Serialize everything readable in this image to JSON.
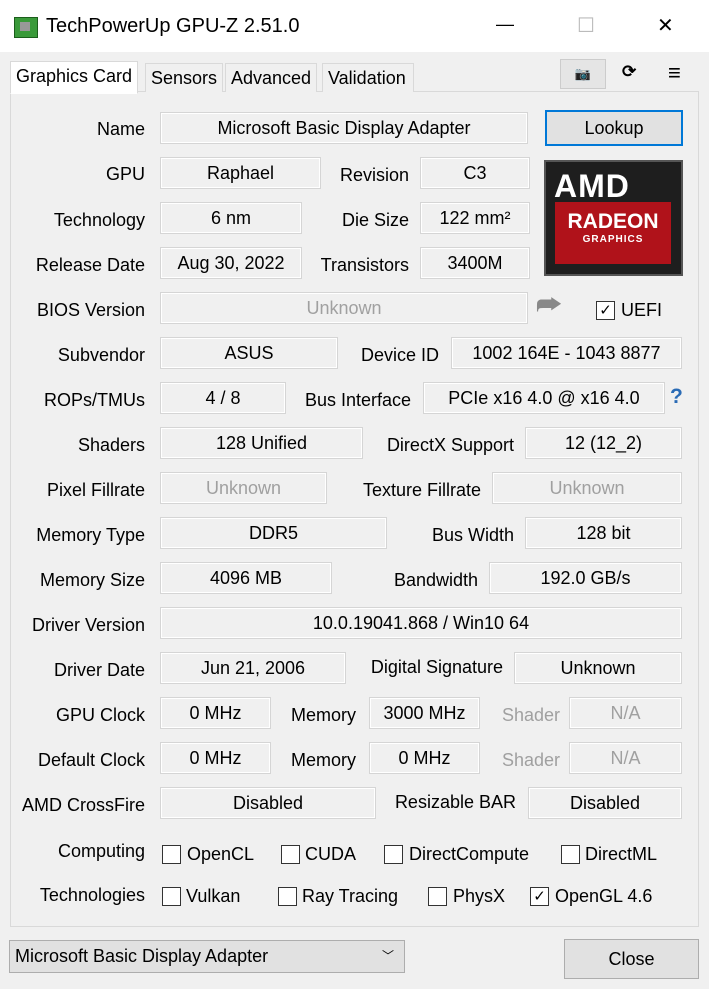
{
  "window": {
    "title": "TechPowerUp GPU-Z 2.51.0",
    "minimize": "—",
    "maximize": "☐",
    "close": "✕"
  },
  "tabs": [
    "Graphics Card",
    "Sensors",
    "Advanced",
    "Validation"
  ],
  "toolbar": {
    "camera": "📷",
    "refresh": "⟳",
    "menu": "≡"
  },
  "labels": {
    "name": "Name",
    "gpu": "GPU",
    "revision": "Revision",
    "technology": "Technology",
    "die_size": "Die Size",
    "release_date": "Release Date",
    "transistors": "Transistors",
    "bios": "BIOS Version",
    "uefi": "UEFI",
    "subvendor": "Subvendor",
    "device_id": "Device ID",
    "rops": "ROPs/TMUs",
    "bus_interface": "Bus Interface",
    "shaders": "Shaders",
    "directx": "DirectX Support",
    "pixel": "Pixel Fillrate",
    "texture": "Texture Fillrate",
    "mem_type": "Memory Type",
    "bus_width": "Bus Width",
    "mem_size": "Memory Size",
    "bandwidth": "Bandwidth",
    "driver_version": "Driver Version",
    "driver_date": "Driver Date",
    "digital_signature": "Digital Signature",
    "gpu_clock": "GPU Clock",
    "memory": "Memory",
    "shader": "Shader",
    "default_clock": "Default Clock",
    "crossfire": "AMD CrossFire",
    "resizable_bar": "Resizable BAR",
    "computing": "Computing",
    "technologies": "Technologies"
  },
  "values": {
    "name": "Microsoft Basic Display Adapter",
    "gpu": "Raphael",
    "revision": "C3",
    "technology": "6 nm",
    "die_size": "122 mm²",
    "release_date": "Aug 30, 2022",
    "transistors": "3400M",
    "bios": "Unknown",
    "subvendor": "ASUS",
    "device_id": "1002 164E - 1043 8877",
    "rops": "4 / 8",
    "bus_interface": "PCIe x16 4.0 @ x16 4.0",
    "shaders": "128 Unified",
    "directx": "12 (12_2)",
    "pixel": "Unknown",
    "texture": "Unknown",
    "mem_type": "DDR5",
    "bus_width": "128 bit",
    "mem_size": "4096 MB",
    "bandwidth": "192.0 GB/s",
    "driver_version": "10.0.19041.868 / Win10 64",
    "driver_date": "Jun 21, 2006",
    "digital_signature": "Unknown",
    "gpu_clock": "0 MHz",
    "gpu_memory": "3000 MHz",
    "gpu_shader": "N/A",
    "default_clock": "0 MHz",
    "default_memory": "0 MHz",
    "default_shader": "N/A",
    "crossfire": "Disabled",
    "resizable_bar": "Disabled"
  },
  "buttons": {
    "lookup": "Lookup",
    "close": "Close",
    "help": "?"
  },
  "logo": {
    "brand": "AMD",
    "line1": "RADEON",
    "line2": "GRAPHICS"
  },
  "uefi_checked": true,
  "computing": [
    {
      "label": "OpenCL",
      "checked": false
    },
    {
      "label": "CUDA",
      "checked": false
    },
    {
      "label": "DirectCompute",
      "checked": false
    },
    {
      "label": "DirectML",
      "checked": false
    }
  ],
  "technologies": [
    {
      "label": "Vulkan",
      "checked": false
    },
    {
      "label": "Ray Tracing",
      "checked": false
    },
    {
      "label": "PhysX",
      "checked": false
    },
    {
      "label": "OpenGL 4.6",
      "checked": true
    }
  ],
  "device_select": {
    "value": "Microsoft Basic Display Adapter"
  },
  "check_glyph": "✓"
}
